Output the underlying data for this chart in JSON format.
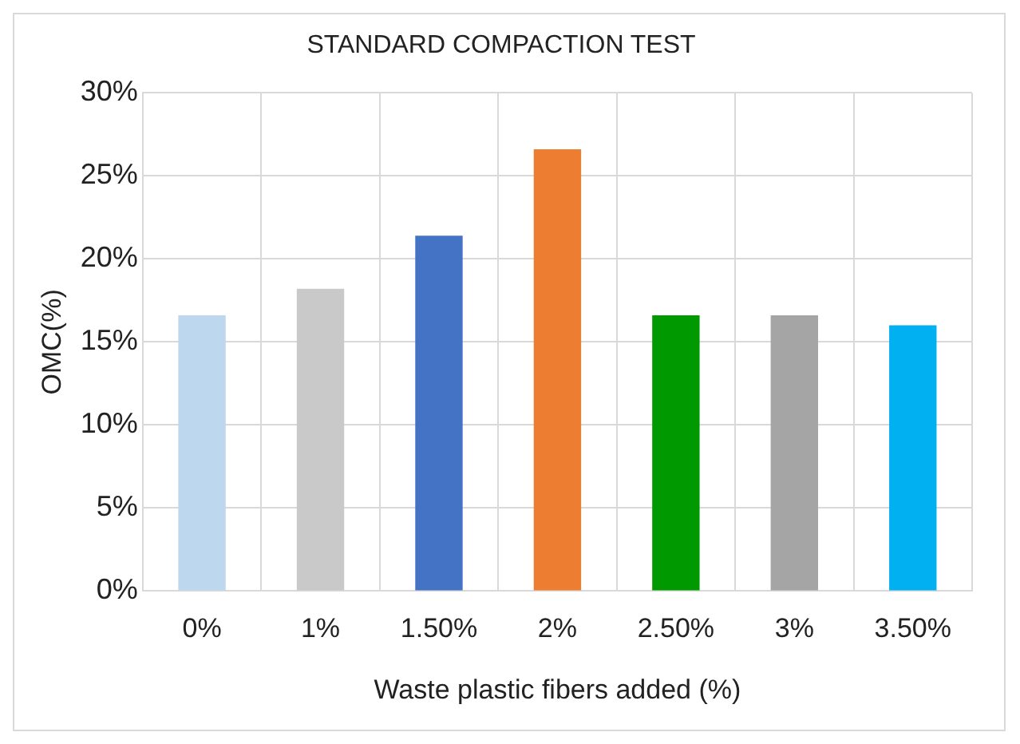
{
  "chart_data": {
    "type": "bar",
    "title": "STANDARD COMPACTION TEST",
    "xlabel": "Waste plastic fibers added (%)",
    "ylabel": "OMC(%)",
    "categories": [
      "0%",
      "1%",
      "1.50%",
      "2%",
      "2.50%",
      "3%",
      "3.50%"
    ],
    "values": [
      16.6,
      18.2,
      21.4,
      26.6,
      16.6,
      16.6,
      16.0
    ],
    "colors": [
      "#bdd7ee",
      "#c9c9c9",
      "#4472c4",
      "#ed7d31",
      "#009900",
      "#a5a5a5",
      "#00b0f0"
    ],
    "ylim": [
      0,
      30
    ],
    "yticks": [
      {
        "value": 0,
        "label": "0%"
      },
      {
        "value": 5,
        "label": "5%"
      },
      {
        "value": 10,
        "label": "10%"
      },
      {
        "value": 15,
        "label": "15%"
      },
      {
        "value": 20,
        "label": "20%"
      },
      {
        "value": 25,
        "label": "25%"
      },
      {
        "value": 30,
        "label": "30%"
      }
    ],
    "grid": true,
    "legend": false
  }
}
